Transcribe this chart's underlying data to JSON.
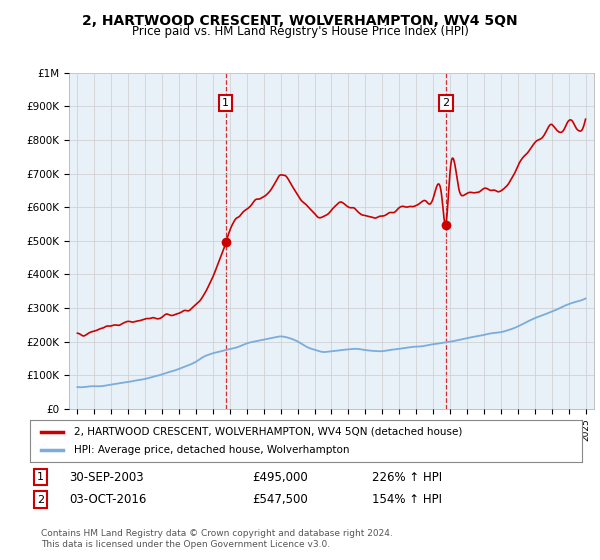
{
  "title": "2, HARTWOOD CRESCENT, WOLVERHAMPTON, WV4 5QN",
  "subtitle": "Price paid vs. HM Land Registry's House Price Index (HPI)",
  "legend_line1": "2, HARTWOOD CRESCENT, WOLVERHAMPTON, WV4 5QN (detached house)",
  "legend_line2": "HPI: Average price, detached house, Wolverhampton",
  "sale1_label": "1",
  "sale1_date": "30-SEP-2003",
  "sale1_price": "£495,000",
  "sale1_hpi": "226% ↑ HPI",
  "sale1_year": 2003.75,
  "sale1_value": 495000,
  "sale2_label": "2",
  "sale2_date": "03-OCT-2016",
  "sale2_price": "£547,500",
  "sale2_hpi": "154% ↑ HPI",
  "sale2_year": 2016.75,
  "sale2_value": 547500,
  "footer": "Contains HM Land Registry data © Crown copyright and database right 2024.\nThis data is licensed under the Open Government Licence v3.0.",
  "red_color": "#cc0000",
  "blue_color": "#7aaddb",
  "chart_bg": "#e8f0f8",
  "background_color": "#ffffff",
  "grid_color": "#cccccc",
  "ylim": [
    0,
    1000000
  ],
  "xlim_start": 1994.5,
  "xlim_end": 2025.5,
  "red_years": [
    1995.0,
    1995.5,
    1996.0,
    1996.5,
    1997.0,
    1997.5,
    1998.0,
    1998.5,
    1999.0,
    1999.5,
    2000.0,
    2000.5,
    2001.0,
    2001.5,
    2002.0,
    2002.5,
    2003.0,
    2003.5,
    2003.75,
    2004.0,
    2004.5,
    2005.0,
    2005.5,
    2006.0,
    2006.5,
    2007.0,
    2007.5,
    2008.0,
    2008.5,
    2009.0,
    2009.5,
    2010.0,
    2010.5,
    2011.0,
    2011.5,
    2012.0,
    2012.5,
    2013.0,
    2013.5,
    2014.0,
    2014.5,
    2015.0,
    2015.5,
    2016.0,
    2016.5,
    2016.75,
    2017.0,
    2017.5,
    2018.0,
    2018.5,
    2019.0,
    2019.5,
    2020.0,
    2020.5,
    2021.0,
    2021.5,
    2022.0,
    2022.5,
    2023.0,
    2023.5,
    2024.0,
    2024.5,
    2025.0
  ],
  "red_values": [
    220000,
    225000,
    235000,
    240000,
    248000,
    252000,
    258000,
    262000,
    265000,
    268000,
    272000,
    278000,
    285000,
    295000,
    310000,
    340000,
    390000,
    460000,
    495000,
    530000,
    570000,
    595000,
    615000,
    635000,
    660000,
    695000,
    680000,
    640000,
    610000,
    580000,
    570000,
    590000,
    610000,
    605000,
    590000,
    575000,
    570000,
    575000,
    585000,
    595000,
    600000,
    605000,
    615000,
    625000,
    635000,
    547500,
    700000,
    655000,
    640000,
    645000,
    650000,
    655000,
    645000,
    670000,
    720000,
    760000,
    790000,
    810000,
    840000,
    820000,
    855000,
    835000,
    860000
  ],
  "blue_years": [
    1995.0,
    1995.5,
    1996.0,
    1996.5,
    1997.0,
    1997.5,
    1998.0,
    1998.5,
    1999.0,
    1999.5,
    2000.0,
    2000.5,
    2001.0,
    2001.5,
    2002.0,
    2002.5,
    2003.0,
    2003.5,
    2004.0,
    2004.5,
    2005.0,
    2005.5,
    2006.0,
    2006.5,
    2007.0,
    2007.5,
    2008.0,
    2008.5,
    2009.0,
    2009.5,
    2010.0,
    2010.5,
    2011.0,
    2011.5,
    2012.0,
    2012.5,
    2013.0,
    2013.5,
    2014.0,
    2014.5,
    2015.0,
    2015.5,
    2016.0,
    2016.5,
    2017.0,
    2017.5,
    2018.0,
    2018.5,
    2019.0,
    2019.5,
    2020.0,
    2020.5,
    2021.0,
    2021.5,
    2022.0,
    2022.5,
    2023.0,
    2023.5,
    2024.0,
    2024.5,
    2025.0
  ],
  "blue_values": [
    65000,
    65000,
    67000,
    68000,
    72000,
    76000,
    80000,
    85000,
    90000,
    95000,
    102000,
    110000,
    118000,
    128000,
    140000,
    155000,
    165000,
    172000,
    178000,
    185000,
    195000,
    200000,
    205000,
    210000,
    215000,
    210000,
    200000,
    185000,
    175000,
    170000,
    172000,
    175000,
    177000,
    178000,
    175000,
    172000,
    172000,
    175000,
    178000,
    182000,
    185000,
    188000,
    192000,
    196000,
    200000,
    205000,
    210000,
    215000,
    220000,
    225000,
    228000,
    235000,
    245000,
    258000,
    270000,
    278000,
    288000,
    300000,
    312000,
    320000,
    330000
  ]
}
